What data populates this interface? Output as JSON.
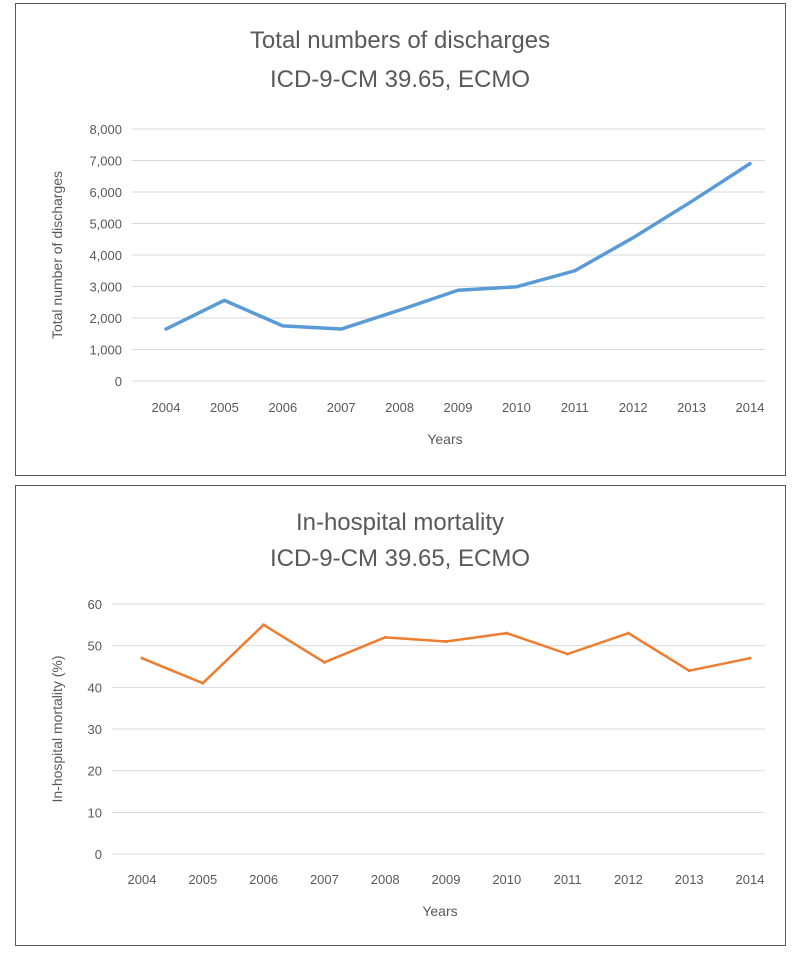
{
  "chart_data": [
    {
      "type": "line",
      "title": [
        "Total numbers of discharges",
        "ICD-9-CM 39.65, ECMO"
      ],
      "xlabel": "Years",
      "ylabel": "Total number of discharges",
      "categories": [
        "2004",
        "2005",
        "2006",
        "2007",
        "2008",
        "2009",
        "2010",
        "2011",
        "2012",
        "2013",
        "2014"
      ],
      "series": [
        {
          "name": "Total discharges",
          "values": [
            1650,
            2560,
            1750,
            1650,
            2250,
            2880,
            2990,
            3500,
            4550,
            5700,
            6900
          ],
          "color": "#5B9BD5"
        }
      ],
      "ylim": [
        0,
        8000
      ],
      "yticks": [
        0,
        1000,
        2000,
        3000,
        4000,
        5000,
        6000,
        7000,
        8000
      ],
      "ytick_labels": [
        "0",
        "1,000",
        "2,000",
        "3,000",
        "4,000",
        "5,000",
        "6,000",
        "7,000",
        "8,000"
      ],
      "grid": true
    },
    {
      "type": "line",
      "title": [
        "In-hospital mortality",
        "ICD-9-CM 39.65, ECMO"
      ],
      "xlabel": "Years",
      "ylabel": "In-hospital mortality (%)",
      "categories": [
        "2004",
        "2005",
        "2006",
        "2007",
        "2008",
        "2009",
        "2010",
        "2011",
        "2012",
        "2013",
        "2014"
      ],
      "series": [
        {
          "name": "In-hospital mortality",
          "values": [
            47,
            41,
            55,
            46,
            52,
            51,
            53,
            48,
            53,
            44,
            47
          ],
          "color": "#ED7D31"
        }
      ],
      "ylim": [
        0,
        60
      ],
      "yticks": [
        0,
        10,
        20,
        30,
        40,
        50,
        60
      ],
      "ytick_labels": [
        "0",
        "10",
        "20",
        "30",
        "40",
        "50",
        "60"
      ],
      "grid": true
    }
  ]
}
